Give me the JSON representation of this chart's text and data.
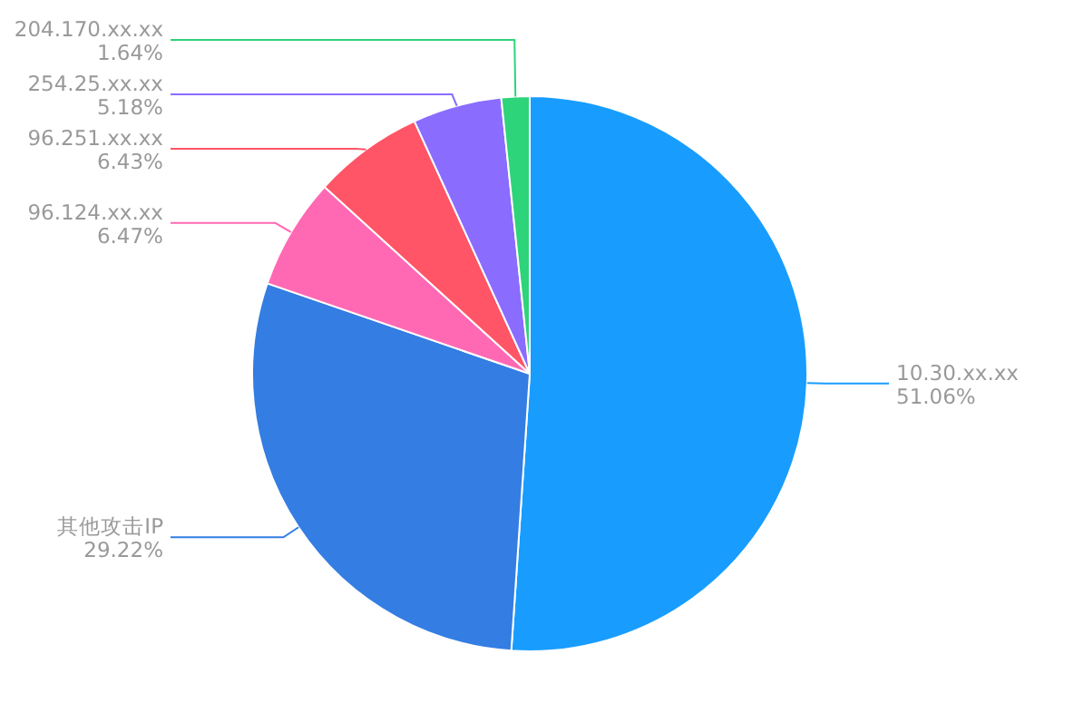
{
  "chart_data": {
    "type": "pie",
    "categories": [
      "10.30.xx.xx",
      "其他攻击IP",
      "96.124.xx.xx",
      "96.251.xx.xx",
      "254.25.xx.xx",
      "204.170.xx.xx"
    ],
    "values": [
      51.06,
      29.22,
      6.47,
      6.43,
      5.18,
      1.64
    ],
    "colors": [
      "#189dff",
      "#347de2",
      "#ff69b4",
      "#ff5566",
      "#8a6cff",
      "#2ed47a"
    ],
    "value_labels": [
      "51.06%",
      "29.22%",
      "6.47%",
      "6.43%",
      "5.18%",
      "1.64%"
    ]
  }
}
